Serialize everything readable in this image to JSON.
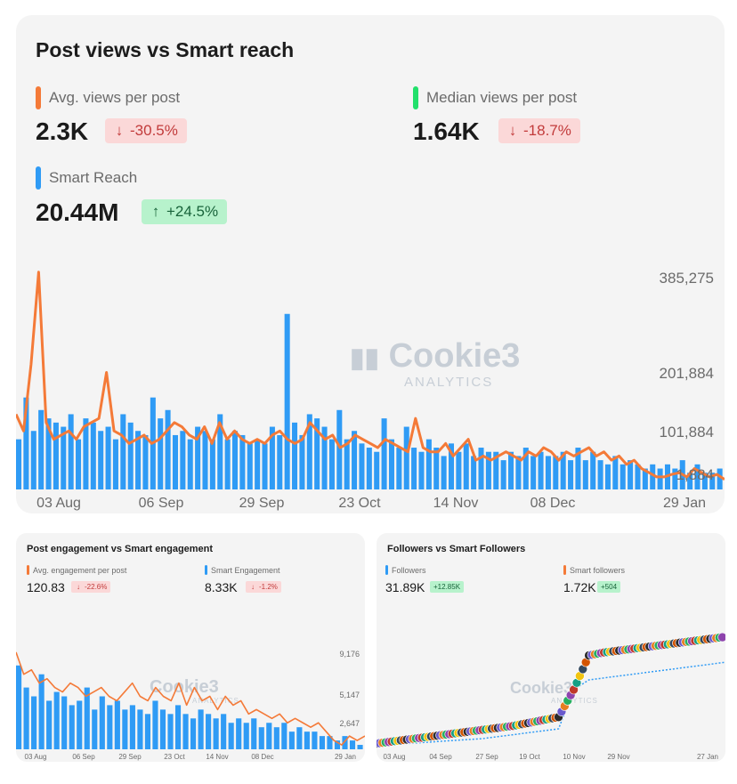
{
  "main": {
    "title": "Post views vs Smart reach",
    "metrics": [
      {
        "label": "Avg. views per post",
        "value": "2.3K",
        "change": "-30.5%",
        "direction": "down",
        "color": "#f47a38"
      },
      {
        "label": "Median views per post",
        "value": "1.64K",
        "change": "-18.7%",
        "direction": "down",
        "color": "#22e06b"
      },
      {
        "label": "Smart Reach",
        "value": "20.44M",
        "change": "+24.5%",
        "direction": "up",
        "color": "#2f9bf5"
      }
    ],
    "watermark": "Cookie3",
    "watermark_sub": "ANALYTICS"
  },
  "engagement": {
    "title": "Post engagement vs Smart engagement",
    "metrics": [
      {
        "label": "Avg. engagement per post",
        "value": "120.83",
        "change": "-22.6%",
        "direction": "down",
        "color": "#f47a38"
      },
      {
        "label": "Smart Engagement",
        "value": "8.33K",
        "change": "-1.2%",
        "direction": "down",
        "color": "#2f9bf5"
      }
    ],
    "watermark": "Cookie3",
    "watermark_sub": "ANALYTICS"
  },
  "followers": {
    "title": "Followers vs Smart Followers",
    "metrics": [
      {
        "label": "Followers",
        "value": "31.89K",
        "change": "+12.85K",
        "direction": "up",
        "color": "#2f9bf5"
      },
      {
        "label": "Smart followers",
        "value": "1.72K",
        "change": "+504",
        "direction": "up",
        "color": "#f47a38"
      }
    ],
    "watermark": "Cookie3",
    "watermark_sub": "ANALYTICS"
  },
  "chart_data": [
    {
      "type": "bar",
      "title": "Post views vs Smart reach",
      "x_ticks": [
        "03 Aug",
        "06 Sep",
        "29 Sep",
        "23 Oct",
        "14 Nov",
        "08 Dec",
        "29 Jan"
      ],
      "y_ticks": [
        "385,275",
        "201,884",
        "101,884",
        "1,884"
      ],
      "series": [
        {
          "name": "Smart Reach",
          "kind": "bar",
          "color": "#2f9bf5",
          "values": [
            60,
            110,
            70,
            95,
            85,
            80,
            75,
            90,
            60,
            85,
            80,
            70,
            75,
            60,
            90,
            80,
            70,
            65,
            110,
            85,
            95,
            65,
            70,
            60,
            75,
            70,
            60,
            90,
            60,
            70,
            65,
            55,
            60,
            55,
            75,
            65,
            210,
            80,
            65,
            90,
            85,
            75,
            60,
            95,
            60,
            70,
            55,
            50,
            45,
            85,
            60,
            50,
            75,
            50,
            45,
            60,
            50,
            40,
            55,
            45,
            55,
            40,
            50,
            45,
            45,
            35,
            45,
            40,
            50,
            40,
            45,
            40,
            40,
            45,
            35,
            50,
            35,
            45,
            35,
            30,
            40,
            30,
            35,
            30,
            25,
            30,
            25,
            30,
            25,
            35,
            20,
            30,
            20,
            20,
            25
          ]
        },
        {
          "name": "Avg. views per post",
          "kind": "line",
          "color": "#f47a38",
          "values": [
            90,
            70,
            150,
            260,
            80,
            60,
            65,
            70,
            60,
            75,
            80,
            85,
            140,
            70,
            65,
            55,
            60,
            65,
            55,
            60,
            70,
            80,
            75,
            65,
            60,
            75,
            55,
            80,
            60,
            70,
            60,
            55,
            60,
            55,
            65,
            70,
            60,
            55,
            60,
            80,
            70,
            60,
            65,
            50,
            55,
            65,
            60,
            55,
            50,
            60,
            55,
            50,
            45,
            85,
            50,
            45,
            45,
            55,
            40,
            50,
            60,
            35,
            40,
            35,
            40,
            45,
            40,
            35,
            45,
            40,
            50,
            45,
            35,
            45,
            40,
            45,
            50,
            40,
            45,
            35,
            40,
            30,
            35,
            25,
            20,
            15,
            15,
            18,
            20,
            15,
            25,
            20,
            15,
            18,
            12
          ]
        }
      ]
    },
    {
      "type": "bar",
      "title": "Post engagement vs Smart engagement",
      "x_ticks": [
        "03 Aug",
        "06 Sep",
        "29 Sep",
        "23 Oct",
        "14 Nov",
        "08 Dec",
        "29 Jan"
      ],
      "y_ticks": [
        "9,176",
        "5,147",
        "2,647"
      ],
      "series": [
        {
          "name": "Smart Engagement",
          "kind": "bar",
          "color": "#2f9bf5",
          "values": [
            95,
            70,
            60,
            85,
            55,
            65,
            60,
            50,
            55,
            70,
            45,
            60,
            50,
            55,
            45,
            50,
            45,
            40,
            55,
            45,
            40,
            50,
            40,
            35,
            45,
            40,
            35,
            40,
            30,
            35,
            30,
            35,
            25,
            30,
            25,
            30,
            20,
            25,
            20,
            20,
            15,
            15,
            10,
            15,
            10,
            5
          ]
        },
        {
          "name": "Avg. engagement per post",
          "kind": "line",
          "color": "#f47a38",
          "values": [
            110,
            85,
            90,
            75,
            80,
            70,
            65,
            75,
            70,
            60,
            65,
            70,
            60,
            55,
            65,
            75,
            60,
            55,
            70,
            60,
            55,
            75,
            50,
            70,
            55,
            60,
            45,
            60,
            50,
            55,
            40,
            45,
            40,
            35,
            40,
            30,
            35,
            30,
            25,
            30,
            20,
            10,
            5,
            15,
            10,
            15
          ]
        }
      ]
    },
    {
      "type": "line",
      "title": "Followers vs Smart Followers",
      "x_ticks": [
        "03 Aug",
        "04 Sep",
        "27 Sep",
        "19 Oct",
        "10 Nov",
        "29 Nov",
        "27 Jan"
      ],
      "y_ticks": [],
      "series": [
        {
          "name": "Followers",
          "kind": "line",
          "color": "#2f9bf5",
          "values": [
            5,
            7,
            9,
            11,
            13,
            15,
            17,
            19,
            21,
            23,
            26,
            29,
            32,
            60,
            95,
            98,
            100,
            102,
            104,
            106,
            108,
            110,
            112,
            114
          ]
        },
        {
          "name": "Smart followers",
          "kind": "line",
          "color": "#2f9bf5",
          "values": [
            3,
            4,
            5,
            6,
            7,
            8,
            9,
            10,
            12,
            14,
            16,
            18,
            20,
            60,
            70,
            72,
            74,
            76,
            78,
            80,
            82,
            84,
            86,
            88
          ]
        }
      ]
    }
  ]
}
